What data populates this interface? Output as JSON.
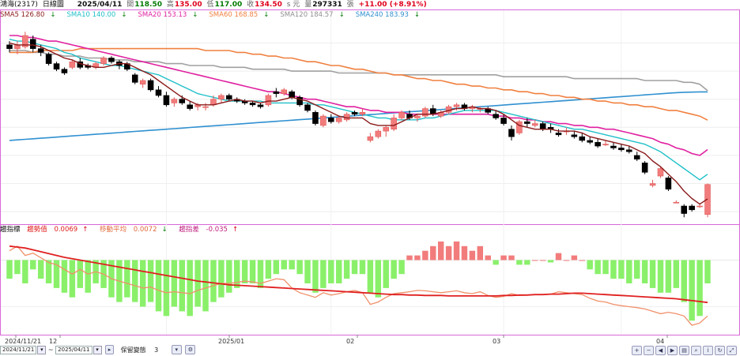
{
  "header": {
    "stock": "鴻海(2317)",
    "period": "日線圖",
    "date": "2025/04/11",
    "open_label": "開",
    "open": "118.50",
    "high_label": "高",
    "high": "135.00",
    "low_label": "低",
    "low": "117.00",
    "close_label": "收",
    "close": "134.50",
    "unit": "s 元",
    "volume_label": "量",
    "volume": "297331",
    "volume_unit": "張",
    "change": "+11.00 (+8.91%)"
  },
  "ma_legend": [
    {
      "text": "SMA5 126.80",
      "arrow": "↓",
      "color": "#8b1a1a"
    },
    {
      "text": "SMA10 140.00",
      "arrow": "↓",
      "color": "#20c0c8"
    },
    {
      "text": "SMA20 153.13",
      "arrow": "↓",
      "color": "#e020a0"
    },
    {
      "text": "SMA60 168.85",
      "arrow": "↓",
      "color": "#f08040"
    },
    {
      "text": "SMA120 184.57",
      "arrow": "↓",
      "color": "#909090"
    },
    {
      "text": "SMA240 183.93",
      "arrow": "↓",
      "color": "#3090d0"
    }
  ],
  "osc_legend": {
    "title": "趨指標",
    "a_label": "趨勢值",
    "a_value": "0.0069",
    "a_arrow": "↑",
    "b_label": "移動平均",
    "b_value": "0.0072",
    "b_arrow": "↓",
    "c_label": "趨指差",
    "c_value": "-0.035",
    "c_arrow": "↑"
  },
  "x_axis_labels": [
    "2024/11/21",
    "12",
    "2025/01",
    "02",
    "03",
    "04"
  ],
  "bottom": {
    "start_date": "2024/11/21",
    "sep": "~",
    "end_date": "2025/04/11",
    "keep_label": "保留變態",
    "keep_value": "3"
  },
  "colors": {
    "up": "#f27c7c",
    "down": "#000000",
    "osc_pos": "#f27c7c",
    "osc_neg": "#8af06a",
    "sma5": "#8b1a1a",
    "sma10": "#20c0c8",
    "sma20": "#e020a0",
    "sma60": "#f08040",
    "sma120": "#a0a0a0",
    "sma240": "#3090d0",
    "osc_line1": "#e02020",
    "osc_line2": "#f0906a",
    "border": "#d868d8"
  },
  "chart_data": {
    "type": "candlestick",
    "price_min": 115,
    "price_max": 222,
    "candles": [
      [
        209,
        211,
        205,
        207
      ],
      [
        207,
        211,
        204,
        209
      ],
      [
        208,
        216,
        207,
        214
      ],
      [
        212,
        214,
        205,
        207
      ],
      [
        207,
        209,
        203,
        205
      ],
      [
        204,
        205,
        198,
        199
      ],
      [
        199,
        200,
        195,
        196
      ],
      [
        196,
        197,
        193,
        194
      ],
      [
        197,
        201,
        196,
        200
      ],
      [
        200,
        202,
        196,
        197
      ],
      [
        198,
        199,
        196,
        197
      ],
      [
        197,
        200,
        196,
        199
      ],
      [
        199,
        203,
        198,
        202
      ],
      [
        202,
        203,
        199,
        200
      ],
      [
        200,
        201,
        196,
        198
      ],
      [
        199,
        200,
        195,
        196
      ],
      [
        193,
        194,
        188,
        189
      ],
      [
        188,
        191,
        186,
        190
      ],
      [
        190,
        191,
        184,
        185
      ],
      [
        185,
        187,
        181,
        182
      ],
      [
        182,
        184,
        176,
        177
      ],
      [
        178,
        181,
        176,
        180
      ],
      [
        180,
        182,
        177,
        178
      ],
      [
        177,
        179,
        174,
        175
      ],
      [
        176,
        178,
        174,
        177
      ],
      [
        176,
        178,
        174,
        176
      ],
      [
        177,
        182,
        176,
        180
      ],
      [
        180,
        183,
        178,
        182
      ],
      [
        182,
        183,
        179,
        180
      ],
      [
        180,
        181,
        178,
        179
      ],
      [
        179,
        180,
        177,
        178
      ],
      [
        178,
        179,
        176,
        177
      ],
      [
        177,
        178,
        175,
        176
      ],
      [
        177,
        183,
        176,
        182
      ],
      [
        184,
        186,
        181,
        183
      ],
      [
        183,
        186,
        182,
        185
      ],
      [
        184,
        185,
        180,
        181
      ],
      [
        181,
        182,
        176,
        177
      ],
      [
        177,
        178,
        173,
        174
      ],
      [
        173,
        174,
        166,
        167
      ],
      [
        166,
        172,
        165,
        171
      ],
      [
        170,
        172,
        167,
        168
      ],
      [
        168,
        171,
        167,
        170
      ],
      [
        169,
        173,
        168,
        172
      ],
      [
        173,
        174,
        171,
        172
      ],
      [
        172,
        175,
        171,
        173
      ],
      [
        158,
        162,
        157,
        160
      ],
      [
        160,
        164,
        159,
        163
      ],
      [
        163,
        166,
        160,
        165
      ],
      [
        164,
        172,
        163,
        170
      ],
      [
        170,
        174,
        169,
        173
      ],
      [
        172,
        174,
        169,
        170
      ],
      [
        170,
        172,
        168,
        171
      ],
      [
        171,
        176,
        170,
        175
      ],
      [
        175,
        177,
        171,
        172
      ],
      [
        171,
        174,
        170,
        173
      ],
      [
        173,
        177,
        172,
        176
      ],
      [
        176,
        178,
        174,
        177
      ],
      [
        177,
        178,
        174,
        175
      ],
      [
        175,
        177,
        173,
        176
      ],
      [
        175,
        176,
        173,
        175
      ],
      [
        175,
        176,
        172,
        173
      ],
      [
        172,
        174,
        169,
        170
      ],
      [
        170,
        172,
        166,
        167
      ],
      [
        164,
        166,
        158,
        160
      ],
      [
        162,
        169,
        161,
        168
      ],
      [
        168,
        170,
        165,
        167
      ],
      [
        166,
        169,
        165,
        167
      ],
      [
        167,
        168,
        163,
        164
      ],
      [
        165,
        167,
        162,
        164
      ],
      [
        162,
        164,
        160,
        161
      ],
      [
        163,
        165,
        161,
        163
      ],
      [
        161,
        163,
        159,
        160
      ],
      [
        160,
        162,
        157,
        158
      ],
      [
        158,
        160,
        156,
        157
      ],
      [
        157,
        159,
        154,
        155
      ],
      [
        156,
        158,
        155,
        156
      ],
      [
        155,
        157,
        153,
        154
      ],
      [
        154,
        156,
        152,
        153
      ],
      [
        153,
        155,
        151,
        152
      ],
      [
        150,
        152,
        147,
        148
      ],
      [
        146,
        147,
        140,
        141
      ],
      [
        134,
        137,
        133,
        135
      ],
      [
        139,
        144,
        138,
        143
      ],
      [
        138,
        139,
        131,
        132
      ],
      [
        125,
        126,
        125,
        125
      ],
      [
        123,
        124,
        117,
        119
      ],
      [
        123,
        124,
        120,
        121
      ],
      [
        123,
        124,
        122,
        123
      ],
      [
        118.5,
        135,
        117,
        134.5
      ]
    ],
    "sma5": [
      210,
      209,
      209,
      209,
      208,
      206,
      204,
      202,
      201,
      199,
      198,
      197,
      197,
      198,
      199,
      199,
      197,
      195,
      193,
      190,
      187,
      184,
      181,
      179,
      177,
      177,
      177,
      178,
      179,
      180,
      179,
      179,
      178,
      179,
      179,
      180,
      181,
      180,
      179,
      177,
      175,
      173,
      171,
      170,
      170,
      170,
      167,
      166,
      166,
      166,
      168,
      170,
      172,
      172,
      172,
      173,
      174,
      175,
      175,
      176,
      175,
      175,
      174,
      172,
      169,
      166,
      165,
      164,
      164,
      164,
      163,
      163,
      163,
      162,
      160,
      159,
      158,
      157,
      156,
      155,
      153,
      151,
      147,
      144,
      140,
      136,
      131,
      127,
      124,
      126.8
    ],
    "sma10": [
      212,
      211,
      211,
      210,
      209,
      208,
      207,
      205,
      204,
      202,
      201,
      200,
      199,
      198,
      198,
      197,
      196,
      195,
      194,
      193,
      191,
      189,
      187,
      185,
      183,
      182,
      181,
      180,
      179,
      179,
      179,
      179,
      179,
      178,
      178,
      178,
      178,
      178,
      178,
      177,
      177,
      176,
      175,
      174,
      173,
      172,
      171,
      170,
      170,
      169,
      169,
      169,
      169,
      170,
      170,
      171,
      172,
      173,
      174,
      174,
      174,
      174,
      174,
      173,
      172,
      171,
      170,
      169,
      168,
      167,
      166,
      165,
      164,
      164,
      163,
      162,
      161,
      160,
      159,
      158,
      157,
      156,
      154,
      152,
      149,
      146,
      143,
      140,
      137,
      140
    ],
    "sma20": [
      214,
      214,
      213,
      213,
      212,
      211,
      211,
      210,
      209,
      208,
      207,
      206,
      205,
      204,
      203,
      202,
      201,
      200,
      199,
      198,
      197,
      196,
      195,
      194,
      193,
      192,
      191,
      190,
      189,
      188,
      187,
      186,
      185,
      184,
      184,
      183,
      182,
      181,
      180,
      180,
      179,
      178,
      177,
      176,
      176,
      175,
      174,
      174,
      173,
      173,
      173,
      172,
      172,
      172,
      172,
      172,
      172,
      172,
      172,
      172,
      172,
      172,
      171,
      171,
      170,
      170,
      169,
      169,
      168,
      168,
      167,
      167,
      166,
      166,
      165,
      165,
      164,
      164,
      163,
      162,
      161,
      160,
      159,
      157,
      156,
      154,
      153,
      151,
      150,
      153.13
    ],
    "sma60": [
      205,
      205,
      205,
      205,
      206,
      206,
      206,
      206,
      206,
      207,
      207,
      207,
      207,
      207,
      207,
      207,
      207,
      207,
      207,
      207,
      207,
      207,
      207,
      207,
      207,
      206,
      206,
      206,
      206,
      205,
      205,
      204,
      204,
      203,
      203,
      202,
      202,
      201,
      200,
      200,
      199,
      198,
      198,
      197,
      196,
      196,
      195,
      194,
      194,
      193,
      193,
      192,
      191,
      191,
      190,
      190,
      189,
      188,
      188,
      187,
      187,
      186,
      186,
      185,
      185,
      184,
      184,
      183,
      183,
      182,
      182,
      181,
      181,
      180,
      180,
      179,
      179,
      178,
      178,
      177,
      177,
      176,
      176,
      175,
      174,
      174,
      173,
      172,
      171,
      168.85
    ],
    "sma120": [
      206,
      206,
      206,
      205,
      205,
      204,
      204,
      203,
      203,
      203,
      202,
      202,
      202,
      201,
      201,
      201,
      200,
      200,
      200,
      200,
      199,
      199,
      199,
      198,
      198,
      198,
      198,
      197,
      197,
      197,
      197,
      196,
      196,
      196,
      196,
      196,
      195,
      195,
      195,
      195,
      195,
      195,
      194,
      194,
      194,
      194,
      194,
      194,
      194,
      193,
      193,
      193,
      193,
      193,
      193,
      193,
      193,
      193,
      193,
      193,
      193,
      193,
      193,
      192,
      192,
      192,
      192,
      192,
      192,
      192,
      192,
      192,
      191,
      191,
      191,
      191,
      191,
      191,
      191,
      191,
      191,
      190,
      190,
      190,
      190,
      190,
      189,
      189,
      188,
      184.57
    ],
    "sma240": [
      158,
      158.3,
      158.6,
      158.9,
      159.2,
      159.5,
      159.8,
      160.1,
      160.4,
      160.7,
      161,
      161.3,
      161.6,
      161.9,
      162.2,
      162.5,
      162.8,
      163.1,
      163.4,
      163.7,
      164,
      164.3,
      164.6,
      164.9,
      165.2,
      165.5,
      165.8,
      166.1,
      166.4,
      166.7,
      167,
      167.3,
      167.6,
      167.9,
      168.2,
      168.5,
      168.8,
      169.1,
      169.4,
      169.7,
      170,
      170.3,
      170.6,
      170.9,
      171.2,
      171.5,
      171.8,
      172.1,
      172.4,
      172.7,
      173,
      173.3,
      173.6,
      173.9,
      174.2,
      174.5,
      174.8,
      175.1,
      175.4,
      175.7,
      176,
      176.3,
      176.6,
      176.9,
      177.2,
      177.5,
      177.8,
      178.1,
      178.4,
      178.7,
      179,
      179.3,
      179.6,
      179.9,
      180.2,
      180.5,
      180.8,
      181.1,
      181.4,
      181.7,
      182,
      182.3,
      182.6,
      182.9,
      183.2,
      183.5,
      183.7,
      183.8,
      183.9,
      183.93
    ],
    "osc_min": -0.15,
    "osc_max": 0.05,
    "osc_bars": [
      -0.04,
      -0.03,
      -0.05,
      -0.02,
      -0.04,
      -0.05,
      -0.06,
      -0.07,
      -0.08,
      -0.06,
      -0.07,
      -0.05,
      -0.06,
      -0.08,
      -0.09,
      -0.08,
      -0.09,
      -0.1,
      -0.09,
      -0.11,
      -0.12,
      -0.1,
      -0.11,
      -0.12,
      -0.1,
      -0.11,
      -0.09,
      -0.08,
      -0.07,
      -0.06,
      -0.05,
      -0.05,
      -0.06,
      -0.04,
      -0.03,
      -0.02,
      -0.02,
      -0.03,
      -0.05,
      -0.07,
      -0.06,
      -0.05,
      -0.05,
      -0.04,
      -0.03,
      -0.03,
      -0.07,
      -0.08,
      -0.06,
      -0.04,
      -0.03,
      0.01,
      0.01,
      0.02,
      0.03,
      0.04,
      0.03,
      0.04,
      0.03,
      0.02,
      0.03,
      0.01,
      -0.01,
      0.01,
      0.01,
      -0.01,
      -0.01,
      0,
      0,
      -0.005,
      0.015,
      0,
      0.01,
      0,
      -0.02,
      -0.03,
      -0.03,
      -0.04,
      -0.04,
      -0.05,
      -0.04,
      -0.05,
      -0.06,
      -0.07,
      -0.07,
      -0.06,
      -0.09,
      -0.13,
      -0.12,
      -0.05
    ],
    "osc_line1": [
      0.03,
      0.028,
      0.026,
      0.022,
      0.018,
      0.014,
      0.01,
      0.006,
      0.003,
      0,
      -0.003,
      -0.006,
      -0.009,
      -0.012,
      -0.015,
      -0.018,
      -0.021,
      -0.024,
      -0.027,
      -0.03,
      -0.033,
      -0.036,
      -0.039,
      -0.042,
      -0.045,
      -0.047,
      -0.049,
      -0.051,
      -0.053,
      -0.054,
      -0.055,
      -0.056,
      -0.057,
      -0.058,
      -0.059,
      -0.06,
      -0.061,
      -0.062,
      -0.063,
      -0.064,
      -0.065,
      -0.066,
      -0.067,
      -0.068,
      -0.069,
      -0.07,
      -0.071,
      -0.072,
      -0.073,
      -0.074,
      -0.074,
      -0.075,
      -0.075,
      -0.076,
      -0.076,
      -0.076,
      -0.077,
      -0.077,
      -0.077,
      -0.077,
      -0.077,
      -0.077,
      -0.077,
      -0.076,
      -0.076,
      -0.075,
      -0.075,
      -0.074,
      -0.074,
      -0.073,
      -0.073,
      -0.072,
      -0.071,
      -0.071,
      -0.072,
      -0.073,
      -0.074,
      -0.075,
      -0.076,
      -0.077,
      -0.078,
      -0.079,
      -0.08,
      -0.081,
      -0.082,
      -0.083,
      -0.085,
      -0.087,
      -0.089,
      -0.091
    ],
    "osc_line2": [
      0.02,
      0.03,
      0.01,
      0.015,
      0.005,
      -0.005,
      -0.01,
      -0.02,
      -0.03,
      -0.02,
      -0.03,
      -0.025,
      -0.03,
      -0.04,
      -0.045,
      -0.05,
      -0.055,
      -0.06,
      -0.058,
      -0.065,
      -0.07,
      -0.068,
      -0.07,
      -0.072,
      -0.065,
      -0.06,
      -0.055,
      -0.05,
      -0.05,
      -0.048,
      -0.045,
      -0.047,
      -0.05,
      -0.045,
      -0.04,
      -0.042,
      -0.06,
      -0.07,
      -0.075,
      -0.08,
      -0.07,
      -0.075,
      -0.072,
      -0.068,
      -0.065,
      -0.07,
      -0.095,
      -0.09,
      -0.08,
      -0.072,
      -0.07,
      -0.068,
      -0.065,
      -0.066,
      -0.068,
      -0.07,
      -0.068,
      -0.066,
      -0.07,
      -0.072,
      -0.068,
      -0.076,
      -0.08,
      -0.078,
      -0.072,
      -0.076,
      -0.075,
      -0.074,
      -0.074,
      -0.073,
      -0.068,
      -0.07,
      -0.072,
      -0.074,
      -0.082,
      -0.088,
      -0.09,
      -0.095,
      -0.098,
      -0.1,
      -0.102,
      -0.105,
      -0.11,
      -0.115,
      -0.112,
      -0.115,
      -0.12,
      -0.14,
      -0.135,
      -0.12
    ]
  }
}
